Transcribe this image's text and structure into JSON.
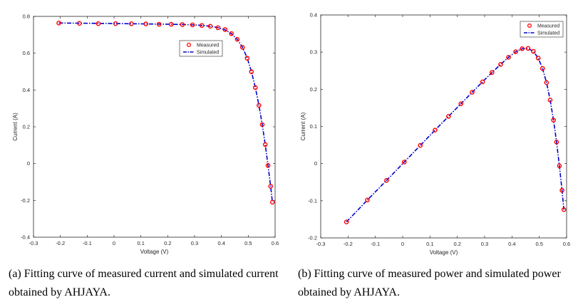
{
  "chart_data": [
    {
      "type": "line",
      "xlabel": "Voltage (V)",
      "ylabel": "Current (A)",
      "xlim": [
        -0.3,
        0.6
      ],
      "ylim": [
        -0.4,
        0.8
      ],
      "xticks": [
        -0.3,
        -0.2,
        -0.1,
        0,
        0.1,
        0.2,
        0.3,
        0.4,
        0.5,
        0.6
      ],
      "yticks": [
        -0.4,
        -0.2,
        0,
        0.2,
        0.4,
        0.6,
        0.8
      ],
      "xtick_labels": [
        "-0.3",
        "-0.2",
        "-0.1",
        "0",
        "0.1",
        "0.2",
        "0.3",
        "0.4",
        "0.5",
        "0.6"
      ],
      "ytick_labels": [
        "-0.4",
        "-0.2",
        "0",
        "0.2",
        "0.4",
        "0.6",
        "0.8"
      ],
      "grid": false,
      "legend_position": "upper-right",
      "series": [
        {
          "name": "Measured",
          "style": "markers",
          "color": "#ff0000",
          "x": [
            -0.2057,
            -0.1291,
            -0.0588,
            0.0057,
            0.0646,
            0.1185,
            0.1678,
            0.2132,
            0.2545,
            0.2924,
            0.3269,
            0.3585,
            0.3873,
            0.4137,
            0.4373,
            0.459,
            0.4784,
            0.496,
            0.5119,
            0.5265,
            0.5398,
            0.5521,
            0.5633,
            0.5736,
            0.5833,
            0.59
          ],
          "y": [
            0.764,
            0.762,
            0.7605,
            0.7605,
            0.76,
            0.759,
            0.757,
            0.757,
            0.7555,
            0.754,
            0.7505,
            0.7465,
            0.7385,
            0.728,
            0.7065,
            0.6755,
            0.632,
            0.573,
            0.499,
            0.413,
            0.3165,
            0.212,
            0.1035,
            -0.01,
            -0.123,
            -0.21
          ]
        },
        {
          "name": "Simulated",
          "style": "dash-dot",
          "color": "#0000cc",
          "x": [
            -0.2057,
            -0.1291,
            -0.0588,
            0.0057,
            0.0646,
            0.1185,
            0.1678,
            0.2132,
            0.2545,
            0.2924,
            0.3269,
            0.3585,
            0.3873,
            0.4137,
            0.4373,
            0.459,
            0.4784,
            0.496,
            0.5119,
            0.5265,
            0.5398,
            0.5521,
            0.5633,
            0.5736,
            0.5833,
            0.59
          ],
          "y": [
            0.764,
            0.763,
            0.762,
            0.761,
            0.76,
            0.759,
            0.758,
            0.757,
            0.756,
            0.754,
            0.751,
            0.7465,
            0.739,
            0.727,
            0.706,
            0.675,
            0.632,
            0.574,
            0.4995,
            0.4125,
            0.3165,
            0.212,
            0.103,
            -0.01,
            -0.123,
            -0.21
          ]
        }
      ]
    },
    {
      "type": "line",
      "xlabel": "Voltage (V)",
      "ylabel": "Current (A)",
      "xlim": [
        -0.3,
        0.6
      ],
      "ylim": [
        -0.2,
        0.4
      ],
      "xticks": [
        -0.3,
        -0.2,
        -0.1,
        0,
        0.1,
        0.2,
        0.3,
        0.4,
        0.5,
        0.6
      ],
      "yticks": [
        -0.2,
        -0.1,
        0,
        0.1,
        0.2,
        0.3,
        0.4
      ],
      "xtick_labels": [
        "-0.3",
        "-0.2",
        "-0.1",
        "0",
        "0.1",
        "0.2",
        "0.3",
        "0.4",
        "0.5",
        "0.6"
      ],
      "ytick_labels": [
        "-0.2",
        "-0.1",
        "0",
        "0.1",
        "0.2",
        "0.3",
        "0.4"
      ],
      "grid": false,
      "legend_position": "top-right",
      "series": [
        {
          "name": "Measured",
          "style": "markers",
          "color": "#ff0000",
          "x": [
            -0.2057,
            -0.1291,
            -0.0588,
            0.0057,
            0.0646,
            0.1185,
            0.1678,
            0.2132,
            0.2545,
            0.2924,
            0.3269,
            0.3585,
            0.3873,
            0.4137,
            0.4373,
            0.459,
            0.4784,
            0.496,
            0.5119,
            0.5265,
            0.5398,
            0.5521,
            0.5633,
            0.5736,
            0.5833,
            0.59
          ],
          "y": [
            -0.157,
            -0.098,
            -0.045,
            0.004,
            0.049,
            0.09,
            0.127,
            0.161,
            0.192,
            0.22,
            0.245,
            0.267,
            0.286,
            0.301,
            0.309,
            0.31,
            0.302,
            0.284,
            0.256,
            0.218,
            0.171,
            0.117,
            0.058,
            -0.006,
            -0.072,
            -0.124
          ]
        },
        {
          "name": "Simulated",
          "style": "dash-dot",
          "color": "#0000cc",
          "x": [
            -0.2057,
            -0.1291,
            -0.0588,
            0.0057,
            0.0646,
            0.1185,
            0.1678,
            0.2132,
            0.2545,
            0.2924,
            0.3269,
            0.3585,
            0.3873,
            0.4137,
            0.4373,
            0.459,
            0.4784,
            0.496,
            0.5119,
            0.5265,
            0.5398,
            0.5521,
            0.5633,
            0.5736,
            0.5833,
            0.59
          ],
          "y": [
            -0.157,
            -0.098,
            -0.045,
            0.004,
            0.049,
            0.09,
            0.127,
            0.161,
            0.192,
            0.22,
            0.245,
            0.267,
            0.286,
            0.301,
            0.309,
            0.31,
            0.302,
            0.284,
            0.256,
            0.218,
            0.171,
            0.117,
            0.058,
            -0.006,
            -0.072,
            -0.124
          ]
        }
      ]
    }
  ],
  "captions": {
    "a": "(a) Fitting curve of measured current and simulated current obtained by AHJAYA.",
    "b": "(b) Fitting curve of measured power and simulated power obtained by AHJAYA."
  }
}
